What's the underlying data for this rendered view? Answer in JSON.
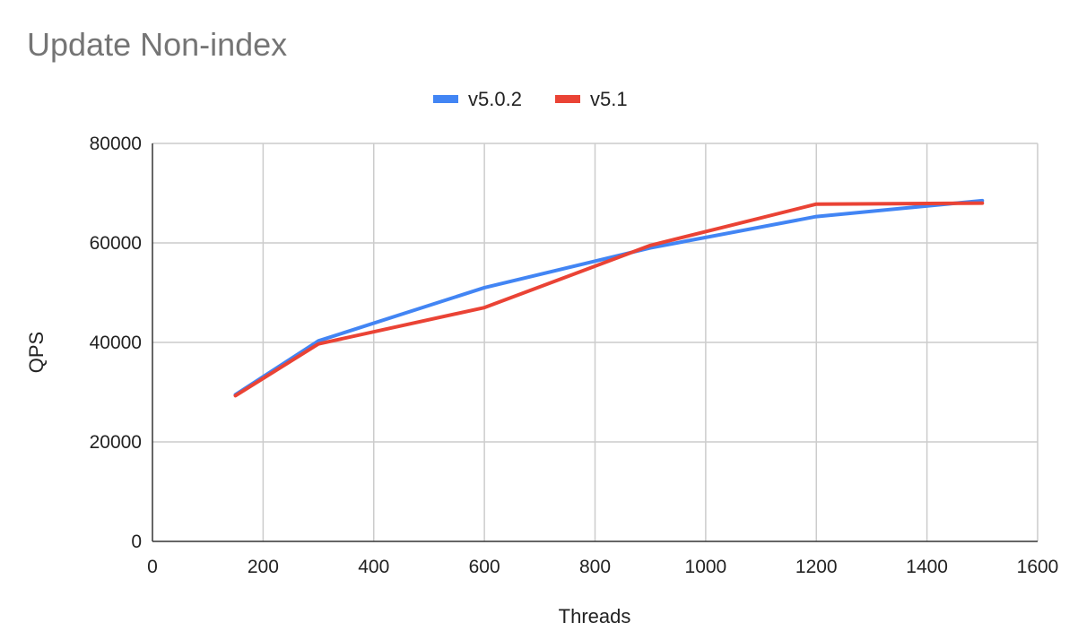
{
  "chart_data": {
    "type": "line",
    "title": "Update Non-index",
    "xlabel": "Threads",
    "ylabel": "QPS",
    "xlim": [
      0,
      1600
    ],
    "ylim": [
      0,
      80000
    ],
    "xticks": [
      0,
      200,
      400,
      600,
      800,
      1000,
      1200,
      1400,
      1600
    ],
    "yticks": [
      0,
      20000,
      40000,
      60000,
      80000
    ],
    "grid": true,
    "legend_position": "top-center",
    "x": [
      150,
      300,
      600,
      900,
      1200,
      1500
    ],
    "series": [
      {
        "name": "v5.0.2",
        "color": "#4285f4",
        "values": [
          29500,
          40300,
          51000,
          59000,
          65300,
          68500
        ]
      },
      {
        "name": "v5.1",
        "color": "#ea4335",
        "values": [
          29300,
          39700,
          47000,
          59500,
          67800,
          68000
        ]
      }
    ]
  }
}
